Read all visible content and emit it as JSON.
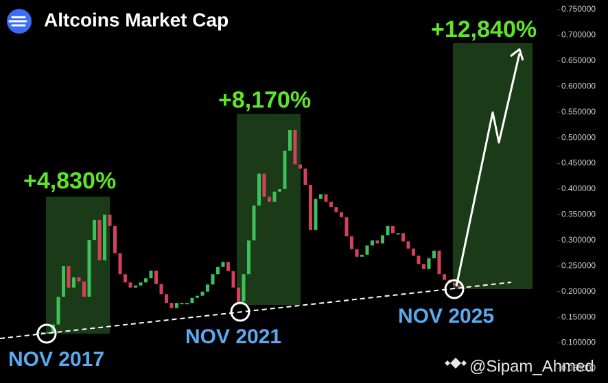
{
  "chart_data": {
    "type": "candlestick",
    "title": "Altcoins Market Cap",
    "annotations": [
      "+4,830%",
      "+8,170%",
      "+12,840%",
      "NOV 2017",
      "NOV 2021",
      "NOV 2025"
    ],
    "watermark": "@Sipam_Ahmed",
    "up_color": "#3dbf5a",
    "down_color": "#d6405a",
    "ylim": [
      0.0219,
      0.7687
    ],
    "yticks": [
      {
        "value": 0.75,
        "label": "0.750000"
      },
      {
        "value": 0.7,
        "label": "0.700000"
      },
      {
        "value": 0.65,
        "label": "0.650000"
      },
      {
        "value": 0.6,
        "label": "0.600000"
      },
      {
        "value": 0.55,
        "label": "0.550000"
      },
      {
        "value": 0.5,
        "label": "0.500000"
      },
      {
        "value": 0.45,
        "label": "0.450000"
      },
      {
        "value": 0.4,
        "label": "0.400000"
      },
      {
        "value": 0.35,
        "label": "0.350000"
      },
      {
        "value": 0.3,
        "label": "0.300000"
      },
      {
        "value": 0.25,
        "label": "0.250000"
      },
      {
        "value": 0.2,
        "label": "0.200000"
      },
      {
        "value": 0.15,
        "label": "0.150000"
      },
      {
        "value": 0.1,
        "label": "0.100000"
      },
      {
        "value": 0.05,
        "label": "0.050000"
      }
    ],
    "values": [
      0.121,
      0.121,
      0.121,
      0.136,
      0.19,
      0.25,
      0.208,
      0.228,
      0.22,
      0.19,
      0.301,
      0.34,
      0.261,
      0.35,
      0.328,
      0.275,
      0.234,
      0.218,
      0.208,
      0.212,
      0.218,
      0.226,
      0.241,
      0.215,
      0.195,
      0.178,
      0.168,
      0.178,
      0.178,
      0.178,
      0.188,
      0.192,
      0.2,
      0.214,
      0.234,
      0.248,
      0.258,
      0.24,
      0.208,
      0.181,
      0.234,
      0.3,
      0.368,
      0.43,
      0.385,
      0.375,
      0.395,
      0.4,
      0.475,
      0.515,
      0.448,
      0.44,
      0.408,
      0.32,
      0.381,
      0.39,
      0.375,
      0.365,
      0.355,
      0.345,
      0.308,
      0.283,
      0.268,
      0.272,
      0.29,
      0.3,
      0.294,
      0.31,
      0.328,
      0.314,
      0.314,
      0.298,
      0.284,
      0.27,
      0.254,
      0.244,
      0.265,
      0.28,
      0.234,
      0.223,
      0.217,
      0.212,
      0.21
    ]
  }
}
